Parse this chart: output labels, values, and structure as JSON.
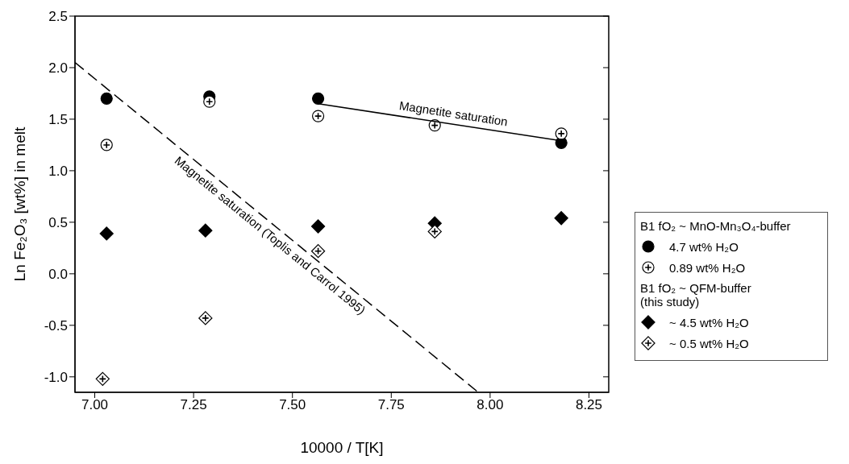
{
  "chart_data": {
    "type": "scatter",
    "xlabel": "10000 / T[K]",
    "ylabel": "Ln Fe₂O₃ [wt%] in melt",
    "xlim": [
      6.95,
      8.3
    ],
    "ylim": [
      -1.15,
      2.5
    ],
    "xticks": [
      {
        "value": 7,
        "label": "7.00"
      },
      {
        "value": 7.25,
        "label": "7.25"
      },
      {
        "value": 7.5,
        "label": "7.50"
      },
      {
        "value": 7.75,
        "label": "7.75"
      },
      {
        "value": 8,
        "label": "8.00"
      },
      {
        "value": 8.25,
        "label": "8.25"
      }
    ],
    "yticks": [
      {
        "value": -1,
        "label": "-1.0"
      },
      {
        "value": -0.5,
        "label": "-0.5"
      },
      {
        "value": 0,
        "label": "0.0"
      },
      {
        "value": 0.5,
        "label": "0.5"
      },
      {
        "value": 1,
        "label": "1.0"
      },
      {
        "value": 1.5,
        "label": "1.5"
      },
      {
        "value": 2,
        "label": "2.0"
      },
      {
        "value": 2.5,
        "label": "2.5"
      }
    ],
    "legend": "right",
    "legend_title": "B1 fO₂ ~ MnO-Mn₃O₄-buffer",
    "annotations": [
      "B1 fO₂ ~ QFM-buffer (this study)"
    ],
    "series": [
      {
        "name": "4.7 wt% H₂O",
        "color": "#000000",
        "marker": "circle",
        "x": [
          7.03,
          7.29,
          7.565,
          8.18
        ],
        "values": [
          1.7,
          1.72,
          1.7,
          1.27
        ]
      },
      {
        "name": "0.89  wt% H₂O",
        "color": "#ffffff",
        "marker": "circle",
        "x": [
          7.03,
          7.29,
          7.565,
          7.86,
          8.18
        ],
        "values": [
          1.25,
          1.67,
          1.53,
          1.44,
          1.36
        ]
      },
      {
        "name": "~ 4.5 wt% H₂O",
        "color": "#000000",
        "marker": "diamond",
        "x": [
          7.03,
          7.28,
          7.565,
          7.86,
          8.18
        ],
        "values": [
          0.39,
          0.42,
          0.46,
          0.49,
          0.54
        ]
      },
      {
        "name": "~ 0.5  wt% H₂O",
        "color": "#ffffff",
        "marker": "diamond",
        "x": [
          7.02,
          7.28,
          7.565,
          7.86
        ],
        "values": [
          -1.02,
          -0.43,
          0.22,
          0.41
        ]
      },
      {
        "type": "line",
        "name": "Magnetite saturation",
        "color": "#000000",
        "marker": "none",
        "line_style": "solid",
        "x": [
          7.565,
          8.18
        ],
        "values": [
          1.65,
          1.29
        ]
      },
      {
        "type": "line",
        "name": "Magnetite saturation (Toplis and Carrol 1995)",
        "color": "#000000",
        "marker": "none",
        "line_style": "dashed",
        "x": [
          6.95,
          7.97
        ],
        "values": [
          2.05,
          -1.15
        ]
      }
    ]
  }
}
